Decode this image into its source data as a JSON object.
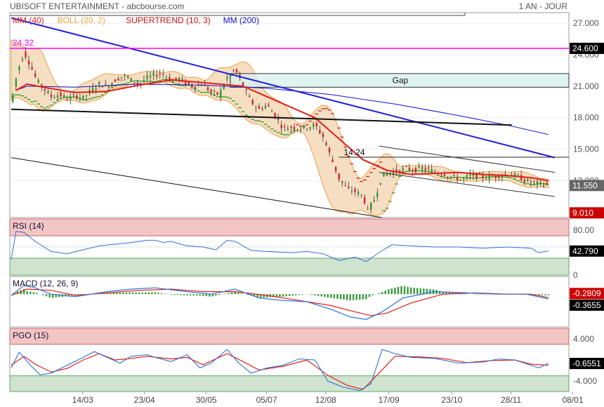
{
  "header": {
    "title": "UBISOFT ENTERTAINMENT - abcbourse.com",
    "period": "1 AN - JOUR"
  },
  "colors": {
    "price_candle": "#2e9a2e",
    "price_candle_down": "#d22",
    "boll_fill": "#f3d3ad",
    "boll_line": "#f0a040",
    "mm40": "#e0201a",
    "mm200": "#1010cc",
    "supertrend_up": "#1b9a1b",
    "supertrend_down": "#cc1111",
    "resistance_magenta": "#ff00ff",
    "trend_blue": "#2020dd",
    "gap_fill": "#d6f0ee",
    "price_badge": "#666666",
    "low_badge": "#cc0000",
    "rsi_line": "#2e6fd6",
    "macd_line": "#2e6fd6",
    "signal_line": "#e0201a",
    "hist": "#3a9a3a",
    "overbought_fill": "#f3c6c6",
    "oversold_fill": "#cfe3cf"
  },
  "chart_data": [
    {
      "panel": "price",
      "type": "candlestick",
      "legend": [
        {
          "label": "MM (40)",
          "color": "#e0201a"
        },
        {
          "label": "BOLL (20, 2)",
          "color": "#f0a040"
        },
        {
          "label": "SUPERTREND (10, 3)",
          "color": "#cc1111"
        },
        {
          "label": "MM (200)",
          "color": "#1010cc"
        }
      ],
      "x_ticks": [
        "14/03",
        "23/04",
        "30/05",
        "05/07",
        "12/08",
        "17/09",
        "23/10",
        "28/11",
        "08/01"
      ],
      "y_ticks": [
        "27.000",
        "24.000",
        "21.000",
        "18.000",
        "15.000",
        "12.000"
      ],
      "ylim": [
        8.5,
        28.0
      ],
      "annotations": {
        "high_label": "24.32",
        "high_value": 24.32,
        "level_label": "14.24",
        "level_value": 14.24,
        "gap_label": "Gap",
        "gap_range": [
          20.9,
          22.2
        ],
        "resistance_value": 24.6,
        "resistance_badge": "24.600",
        "last_value": 11.55,
        "last_badge": "11.550",
        "low_value": 9.01,
        "low_badge": "9.010"
      },
      "close_series": [
        [
          0,
          19.5
        ],
        [
          4,
          22.5
        ],
        [
          8,
          24.2
        ],
        [
          12,
          23.0
        ],
        [
          16,
          21.5
        ],
        [
          20,
          20.8
        ],
        [
          25,
          20.0
        ],
        [
          30,
          20.2
        ],
        [
          35,
          19.8
        ],
        [
          40,
          20.1
        ],
        [
          45,
          19.9
        ],
        [
          50,
          20.6
        ],
        [
          55,
          21.2
        ],
        [
          60,
          21.0
        ],
        [
          65,
          21.6
        ],
        [
          70,
          22.0
        ],
        [
          75,
          21.6
        ],
        [
          80,
          21.2
        ],
        [
          85,
          21.8
        ],
        [
          90,
          22.1
        ],
        [
          95,
          22.2
        ],
        [
          100,
          21.5
        ],
        [
          105,
          21.7
        ],
        [
          110,
          21.2
        ],
        [
          115,
          21.0
        ],
        [
          120,
          21.2
        ],
        [
          125,
          20.4
        ],
        [
          130,
          20.2
        ],
        [
          135,
          21.8
        ],
        [
          140,
          22.6
        ],
        [
          145,
          21.0
        ],
        [
          150,
          19.5
        ],
        [
          155,
          18.8
        ],
        [
          160,
          19.2
        ],
        [
          165,
          18.2
        ],
        [
          170,
          17.0
        ],
        [
          175,
          17.1
        ],
        [
          180,
          17.0
        ],
        [
          185,
          17.1
        ],
        [
          190,
          17.3
        ],
        [
          195,
          16.2
        ],
        [
          200,
          14.2
        ],
        [
          205,
          12.2
        ],
        [
          210,
          11.2
        ],
        [
          215,
          11.0
        ],
        [
          220,
          10.5
        ],
        [
          223,
          9.1
        ],
        [
          227,
          10.2
        ],
        [
          232,
          12.5
        ],
        [
          237,
          12.8
        ],
        [
          242,
          12.9
        ],
        [
          247,
          13.2
        ],
        [
          252,
          13.0
        ],
        [
          257,
          13.2
        ],
        [
          262,
          13.0
        ],
        [
          267,
          12.8
        ],
        [
          272,
          12.6
        ],
        [
          277,
          12.3
        ],
        [
          282,
          12.1
        ],
        [
          287,
          12.5
        ],
        [
          292,
          12.5
        ],
        [
          297,
          12.3
        ],
        [
          302,
          12.4
        ],
        [
          307,
          12.6
        ],
        [
          312,
          12.6
        ],
        [
          317,
          12.4
        ],
        [
          322,
          12.0
        ],
        [
          327,
          11.8
        ],
        [
          332,
          11.7
        ],
        [
          336,
          11.55
        ]
      ],
      "mm40_series": [
        [
          3,
          20.6
        ],
        [
          10,
          21.2
        ],
        [
          20,
          20.9
        ],
        [
          40,
          20.4
        ],
        [
          60,
          20.5
        ],
        [
          80,
          21.1
        ],
        [
          100,
          21.6
        ],
        [
          115,
          21.4
        ],
        [
          130,
          21.2
        ],
        [
          145,
          21.0
        ],
        [
          160,
          20.0
        ],
        [
          175,
          19.0
        ],
        [
          190,
          18.0
        ],
        [
          205,
          16.0
        ],
        [
          220,
          14.0
        ],
        [
          235,
          13.0
        ],
        [
          250,
          12.6
        ],
        [
          265,
          12.7
        ],
        [
          280,
          12.8
        ],
        [
          295,
          12.6
        ],
        [
          310,
          12.5
        ],
        [
          325,
          12.3
        ],
        [
          336,
          12.0
        ]
      ],
      "mm200_series": [
        [
          3,
          20.6
        ],
        [
          10,
          21.0
        ],
        [
          40,
          20.9
        ],
        [
          80,
          21.2
        ],
        [
          120,
          21.1
        ],
        [
          160,
          20.8
        ],
        [
          200,
          20.2
        ],
        [
          240,
          19.3
        ],
        [
          280,
          18.2
        ],
        [
          310,
          17.3
        ],
        [
          336,
          16.4
        ]
      ],
      "trendlines": [
        {
          "name": "blue-downtrend",
          "color": "#2020dd",
          "points": [
            [
              0,
              27.5
            ],
            [
              340,
              14.2
            ]
          ]
        },
        {
          "name": "black-support",
          "color": "#111111",
          "points": [
            [
              0,
              18.8
            ],
            [
              313,
              17.3
            ]
          ]
        },
        {
          "name": "black-lower-channel",
          "color": "#111111",
          "points": [
            [
              0,
              14.2
            ],
            [
              232,
              8.5
            ]
          ]
        },
        {
          "name": "channel-top",
          "color": "#333333",
          "points": [
            [
              230,
              15.3
            ],
            [
              340,
              12.8
            ]
          ]
        },
        {
          "name": "channel-bottom",
          "color": "#333333",
          "points": [
            [
              230,
              12.8
            ],
            [
              340,
              10.5
            ]
          ]
        }
      ]
    },
    {
      "panel": "rsi",
      "type": "line",
      "label": "RSI (14)",
      "y_ticks": [
        "80.00",
        "40.00",
        "0"
      ],
      "ylim": [
        0,
        100
      ],
      "overbought": 70,
      "oversold": 30,
      "last_badge": "42.790",
      "values": [
        [
          0,
          28
        ],
        [
          3,
          78
        ],
        [
          8,
          76
        ],
        [
          15,
          60
        ],
        [
          25,
          42
        ],
        [
          35,
          38
        ],
        [
          45,
          45
        ],
        [
          55,
          52
        ],
        [
          65,
          55
        ],
        [
          75,
          58
        ],
        [
          85,
          62
        ],
        [
          90,
          62
        ],
        [
          95,
          58
        ],
        [
          100,
          60
        ],
        [
          110,
          52
        ],
        [
          120,
          50
        ],
        [
          128,
          45
        ],
        [
          135,
          62
        ],
        [
          140,
          60
        ],
        [
          150,
          44
        ],
        [
          160,
          42
        ],
        [
          175,
          40
        ],
        [
          185,
          42
        ],
        [
          195,
          38
        ],
        [
          205,
          26
        ],
        [
          215,
          32
        ],
        [
          222,
          24
        ],
        [
          230,
          40
        ],
        [
          238,
          54
        ],
        [
          250,
          52
        ],
        [
          265,
          50
        ],
        [
          280,
          50
        ],
        [
          295,
          48
        ],
        [
          310,
          50
        ],
        [
          325,
          48
        ],
        [
          330,
          40
        ],
        [
          336,
          43
        ]
      ]
    },
    {
      "panel": "macd",
      "type": "line",
      "label": "MACD (12, 26, 9)",
      "last_badge_signal": "-0.2809",
      "last_badge_macd": "-0.3655",
      "macd": [
        [
          0,
          -0.1
        ],
        [
          8,
          0.7
        ],
        [
          15,
          0.5
        ],
        [
          25,
          0.0
        ],
        [
          40,
          -0.2
        ],
        [
          60,
          0.2
        ],
        [
          75,
          0.4
        ],
        [
          90,
          0.5
        ],
        [
          110,
          0.2
        ],
        [
          125,
          0.0
        ],
        [
          140,
          0.4
        ],
        [
          155,
          -0.3
        ],
        [
          170,
          -0.5
        ],
        [
          185,
          -0.6
        ],
        [
          200,
          -1.2
        ],
        [
          212,
          -1.8
        ],
        [
          222,
          -2.0
        ],
        [
          232,
          -1.4
        ],
        [
          245,
          -0.3
        ],
        [
          265,
          0.2
        ],
        [
          285,
          0.1
        ],
        [
          305,
          0.0
        ],
        [
          322,
          0.0
        ],
        [
          336,
          -0.37
        ]
      ],
      "signal": [
        [
          0,
          -0.1
        ],
        [
          10,
          0.4
        ],
        [
          25,
          0.3
        ],
        [
          40,
          -0.1
        ],
        [
          60,
          0.1
        ],
        [
          80,
          0.3
        ],
        [
          100,
          0.4
        ],
        [
          120,
          0.2
        ],
        [
          140,
          0.2
        ],
        [
          160,
          -0.1
        ],
        [
          180,
          -0.5
        ],
        [
          200,
          -0.9
        ],
        [
          215,
          -1.4
        ],
        [
          225,
          -1.7
        ],
        [
          235,
          -1.5
        ],
        [
          250,
          -0.7
        ],
        [
          270,
          0.0
        ],
        [
          290,
          0.1
        ],
        [
          310,
          0.0
        ],
        [
          325,
          0.0
        ],
        [
          336,
          -0.28
        ]
      ],
      "ylim": [
        -2.6,
        1.4
      ]
    },
    {
      "panel": "pgo",
      "type": "line",
      "label": "PGO (15)",
      "y_ticks": [
        "4.000",
        "-4.000"
      ],
      "ylim": [
        -6,
        6
      ],
      "last_badge": "-0.6551",
      "pgo": [
        [
          0,
          -1.5
        ],
        [
          5,
          1.5
        ],
        [
          12,
          -1
        ],
        [
          18,
          -2.8
        ],
        [
          25,
          -2.5
        ],
        [
          35,
          -1
        ],
        [
          45,
          0.5
        ],
        [
          52,
          1.6
        ],
        [
          60,
          0.5
        ],
        [
          68,
          -0.6
        ],
        [
          75,
          0.7
        ],
        [
          85,
          1.0
        ],
        [
          90,
          0.5
        ],
        [
          100,
          -0.3
        ],
        [
          110,
          1.0
        ],
        [
          118,
          -1.5
        ],
        [
          125,
          -0.6
        ],
        [
          135,
          2.0
        ],
        [
          142,
          -0.5
        ],
        [
          150,
          -2.5
        ],
        [
          160,
          -1.5
        ],
        [
          170,
          -1.0
        ],
        [
          180,
          0.2
        ],
        [
          190,
          0.0
        ],
        [
          198,
          -4.0
        ],
        [
          208,
          -5.2
        ],
        [
          218,
          -5.8
        ],
        [
          225,
          -4.5
        ],
        [
          232,
          2.0
        ],
        [
          240,
          1.2
        ],
        [
          250,
          0.5
        ],
        [
          265,
          0.3
        ],
        [
          280,
          -0.6
        ],
        [
          295,
          -0.4
        ],
        [
          305,
          0.2
        ],
        [
          315,
          0.0
        ],
        [
          325,
          -1.0
        ],
        [
          330,
          -1.5
        ],
        [
          336,
          -0.6
        ]
      ],
      "signal": [
        [
          0,
          -1.0
        ],
        [
          8,
          0.7
        ],
        [
          15,
          -0.8
        ],
        [
          25,
          -2.3
        ],
        [
          35,
          -1.6
        ],
        [
          45,
          0.0
        ],
        [
          55,
          1.2
        ],
        [
          65,
          0.0
        ],
        [
          75,
          0.3
        ],
        [
          85,
          0.7
        ],
        [
          100,
          0.2
        ],
        [
          110,
          0.5
        ],
        [
          120,
          -0.9
        ],
        [
          135,
          1.2
        ],
        [
          145,
          -0.3
        ],
        [
          155,
          -1.9
        ],
        [
          170,
          -1.2
        ],
        [
          185,
          0.0
        ],
        [
          198,
          -2.9
        ],
        [
          210,
          -4.8
        ],
        [
          220,
          -5.6
        ],
        [
          230,
          -2.5
        ],
        [
          240,
          0.7
        ],
        [
          255,
          0.6
        ],
        [
          270,
          0.3
        ],
        [
          285,
          -0.5
        ],
        [
          300,
          -0.1
        ],
        [
          315,
          0.0
        ],
        [
          325,
          -0.8
        ],
        [
          336,
          -1.0
        ]
      ]
    }
  ]
}
